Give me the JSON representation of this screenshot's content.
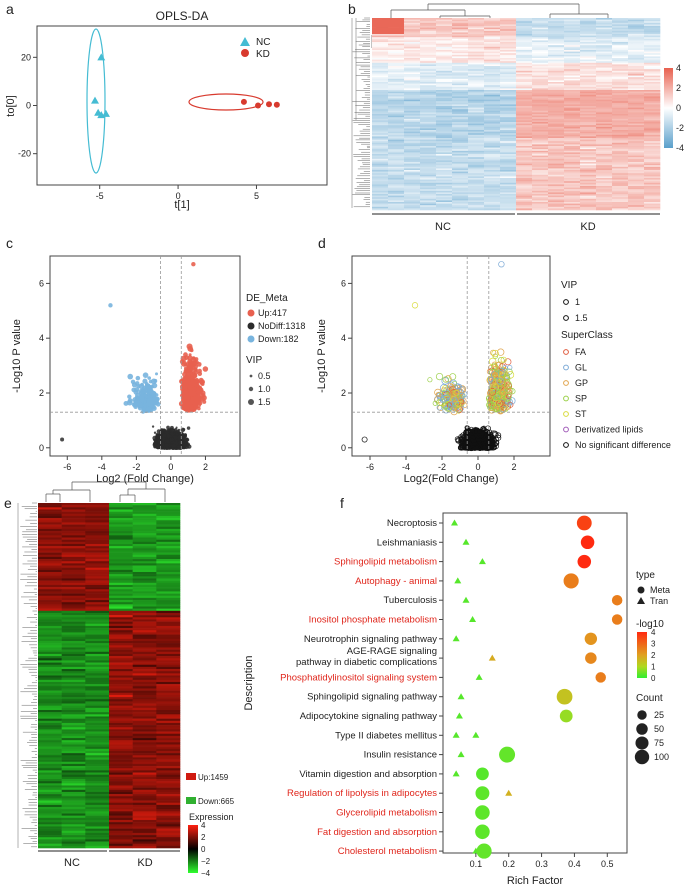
{
  "panels": [
    "a",
    "b",
    "c",
    "d",
    "e",
    "f"
  ],
  "colors": {
    "nc": "#45bcd3",
    "kd": "#d83a2e",
    "up": "#e8604f",
    "down": "#78b4de",
    "nodiff": "#2b2b2b",
    "heat_high": "#e8604f",
    "heat_mid": "#ffffff",
    "heat_low": "#5a9fcb",
    "expr_high": "#ff2010",
    "expr_mid": "#000000",
    "expr_low": "#30ff30",
    "fa": "#e05a3d",
    "gl": "#7ba9d6",
    "gp": "#e1a54d",
    "sp": "#9ad047",
    "st": "#d9db3b",
    "derivatized": "#a05ab8",
    "nosig": "#111111"
  },
  "chart_data": [
    {
      "panel": "a",
      "type": "scatter",
      "title": "OPLS-DA",
      "xlabel": "t[1]",
      "ylabel": "to[0]",
      "xlim": [
        -9,
        9.5
      ],
      "ylim": [
        -33,
        33
      ],
      "xticks": [
        -5,
        0,
        5
      ],
      "yticks": [
        -20,
        0,
        20
      ],
      "legend": [
        "NC",
        "KD"
      ],
      "series": [
        {
          "name": "NC",
          "marker": "triangle",
          "points": [
            [
              -4.9,
              20
            ],
            [
              -5.3,
              2
            ],
            [
              -5.1,
              -3
            ],
            [
              -4.9,
              -4
            ],
            [
              -4.6,
              -3.5
            ]
          ]
        },
        {
          "name": "KD",
          "marker": "circle",
          "points": [
            [
              4.2,
              1.5
            ],
            [
              5.1,
              0
            ],
            [
              5.8,
              0.5
            ],
            [
              6.3,
              0.3
            ]
          ]
        }
      ]
    },
    {
      "panel": "b",
      "type": "heatmap",
      "groups": [
        "NC",
        "KD"
      ],
      "colorbar_ticks": [
        4,
        2,
        0,
        -2,
        -4
      ]
    },
    {
      "panel": "c",
      "type": "scatter",
      "xlabel": "Log2 (Fold Change)",
      "ylabel": "-Log10 P value",
      "xticks": [
        -6,
        -4,
        -2,
        0,
        2
      ],
      "yticks": [
        0,
        2,
        4,
        6
      ],
      "xlim": [
        -7,
        4
      ],
      "ylim": [
        -0.3,
        7
      ],
      "thresholds": {
        "log2fc": [
          -0.6,
          0.6
        ],
        "p": 1.3
      },
      "legend_title": "DE_Meta",
      "counts": [
        {
          "label": "Up:417"
        },
        {
          "label": "NoDiff:1318"
        },
        {
          "label": "Down:182"
        }
      ],
      "vip_title": "VIP",
      "vip_sizes": [
        "0.5",
        "1.0",
        "1.5"
      ]
    },
    {
      "panel": "d",
      "type": "scatter",
      "xlabel": "Log2(Fold Change)",
      "ylabel": "-Log10 P value",
      "xticks": [
        -6,
        -4,
        -2,
        0,
        2
      ],
      "yticks": [
        0,
        2,
        4,
        6
      ],
      "xlim": [
        -7,
        4
      ],
      "ylim": [
        -0.3,
        7
      ],
      "vip_title": "VIP",
      "vip_sizes": [
        "1",
        "1.5"
      ],
      "superclass_title": "SuperClass",
      "superclasses": [
        "FA",
        "GL",
        "GP",
        "SP",
        "ST",
        "Derivatized lipids",
        "No significant difference"
      ]
    },
    {
      "panel": "e",
      "type": "heatmap",
      "groups": [
        "NC",
        "KD"
      ],
      "counts": [
        "Up:1459",
        "Down:665"
      ],
      "legend_title": "Expression",
      "colorbar_ticks": [
        "4",
        "2",
        "0",
        "−2",
        "−4"
      ]
    },
    {
      "panel": "f",
      "type": "scatter",
      "xlabel": "Rich Factor",
      "ylabel": "Description",
      "xlim": [
        0,
        0.56
      ],
      "xticks": [
        0.1,
        0.2,
        0.3,
        0.4,
        0.5
      ],
      "xtick_labels": [
        "0.1",
        "0.2",
        "0.3",
        "0.4",
        "0.5"
      ],
      "categories": [
        {
          "label": "Necroptosis",
          "red": false,
          "tran": 0.035,
          "meta": 0.43,
          "meta_count": 80,
          "meta_lp": 3.8
        },
        {
          "label": "Leishmaniasis",
          "red": false,
          "tran": 0.07,
          "meta": 0.44,
          "meta_count": 60,
          "meta_lp": 4
        },
        {
          "label": "Sphingolipid metabolism",
          "red": true,
          "tran": 0.12,
          "meta": 0.43,
          "meta_count": 60,
          "meta_lp": 4
        },
        {
          "label": "Autophagy - animal",
          "red": true,
          "tran": 0.045,
          "meta": 0.39,
          "meta_count": 85,
          "meta_lp": 3.3
        },
        {
          "label": "Tuberculosis",
          "red": false,
          "tran": 0.07,
          "meta": 0.53,
          "meta_count": 25,
          "meta_lp": 3.3
        },
        {
          "label": "Inositol phosphate metabolism",
          "red": true,
          "tran": 0.09,
          "meta": 0.53,
          "meta_count": 25,
          "meta_lp": 3.3
        },
        {
          "label": "Neurotrophin signaling pathway",
          "red": false,
          "tran": 0.04,
          "meta": 0.45,
          "meta_count": 45,
          "meta_lp": 3.1
        },
        {
          "label": "AGE-RAGE signaling pathway in diabetic complications",
          "lines": [
            "AGE-RAGE signaling",
            "pathway in diabetic complications"
          ],
          "red": false,
          "tran": 0.15,
          "tran_lp": 2.8,
          "meta": 0.45,
          "meta_count": 35,
          "meta_lp": 3.2
        },
        {
          "label": "Phosphatidylinositol signaling system",
          "red": true,
          "tran": 0.11,
          "meta": 0.48,
          "meta_count": 25,
          "meta_lp": 3.3
        },
        {
          "label": "Sphingolipid signaling pathway",
          "red": false,
          "tran": 0.055,
          "meta": 0.37,
          "meta_count": 95,
          "meta_lp": 2.4
        },
        {
          "label": "Adipocytokine signaling pathway",
          "red": false,
          "tran": 0.05,
          "meta": 0.375,
          "meta_count": 50,
          "meta_lp": 1.6
        },
        {
          "label": "Type II diabetes mellitus",
          "red": false,
          "tran": 0.04,
          "tran2": 0.1,
          "meta": null
        },
        {
          "label": "Insulin resistance",
          "red": false,
          "tran": 0.055,
          "meta": 0.195,
          "meta_count": 100,
          "meta_lp": 0.8
        },
        {
          "label": "Vitamin digestion and absorption",
          "red": false,
          "tran": 0.04,
          "meta": 0.12,
          "meta_count": 50,
          "meta_lp": 0.6
        },
        {
          "label": "Regulation of lipolysis in adipocytes",
          "red": true,
          "tran": 0.2,
          "tran_lp": 2.7,
          "meta": 0.12,
          "meta_count": 65,
          "meta_lp": 0.7
        },
        {
          "label": "Glycerolipid metabolism",
          "red": true,
          "tran": 0.11,
          "meta": 0.12,
          "meta_count": 75,
          "meta_lp": 0.7
        },
        {
          "label": "Fat digestion and absorption",
          "red": true,
          "tran": 0.11,
          "meta": 0.12,
          "meta_count": 75,
          "meta_lp": 0.7
        },
        {
          "label": "Cholesterol metabolism",
          "red": true,
          "tran": 0.1,
          "meta": 0.125,
          "meta_count": 85,
          "meta_lp": 0.8
        }
      ],
      "legend_type_title": "type",
      "legend_types": [
        "Meta",
        "Tran"
      ],
      "legend_color_title": "-log10",
      "legend_color_ticks": [
        "4",
        "3",
        "2",
        "1",
        "0"
      ],
      "legend_count_title": "Count",
      "legend_counts": [
        "25",
        "50",
        "75",
        "100"
      ]
    }
  ]
}
